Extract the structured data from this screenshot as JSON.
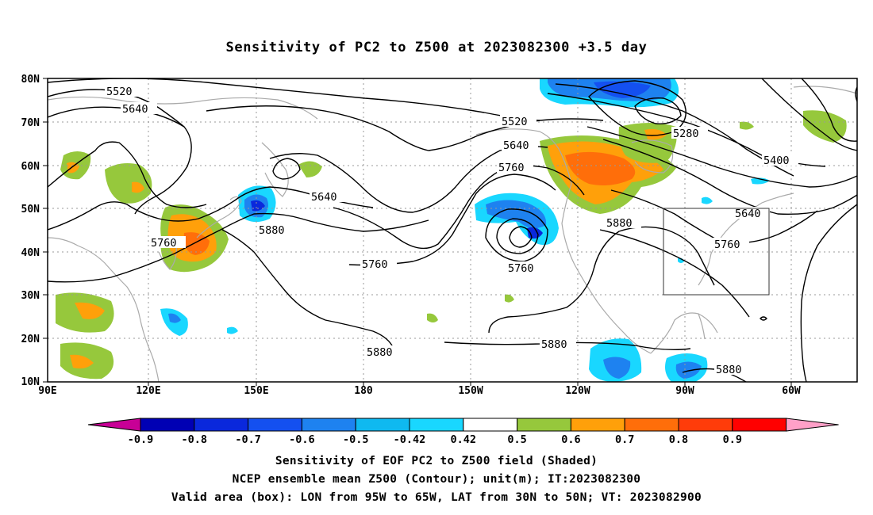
{
  "title": "Sensitivity of PC2 to Z500 at 2023082300 +3.5 day",
  "map": {
    "lat_labels": [
      "80N",
      "70N",
      "60N",
      "50N",
      "40N",
      "30N",
      "20N",
      "10N"
    ],
    "lon_labels": [
      "90E",
      "120E",
      "150E",
      "180",
      "150W",
      "120W",
      "90W",
      "60W"
    ]
  },
  "valid_box": {
    "lon": [
      "95W",
      "65W"
    ],
    "lat": [
      "30N",
      "50N"
    ]
  },
  "contour_labels": [
    "5520",
    "5640",
    "5520",
    "5280",
    "5640",
    "5400",
    "5760",
    "5640",
    "5880",
    "5760",
    "5760",
    "5880",
    "5640",
    "5760",
    "5880",
    "5880",
    "5880"
  ],
  "colorbar": {
    "tick_labels": [
      "-0.9",
      "-0.8",
      "-0.7",
      "-0.6",
      "-0.5",
      "-0.42",
      "0.42",
      "0.5",
      "0.6",
      "0.7",
      "0.8",
      "0.9"
    ],
    "colors": [
      "#c80096",
      "#0000b4",
      "#0a28dc",
      "#1450f0",
      "#1e82f0",
      "#0fb9f0",
      "#19d7ff",
      "#ffffff",
      "#96c83c",
      "#ffa00a",
      "#ff6e0a",
      "#ff3c0a",
      "#ff0000",
      "#ffa0c8"
    ]
  },
  "captions": {
    "line1": "Sensitivity of EOF PC2 to Z500 field (Shaded)",
    "line2": "NCEP ensemble mean Z500 (Contour); unit(m); IT:2023082300",
    "line3": "Valid area (box): LON from 95W to 65W, LAT from 30N to 50N; VT: 2023082900"
  }
}
